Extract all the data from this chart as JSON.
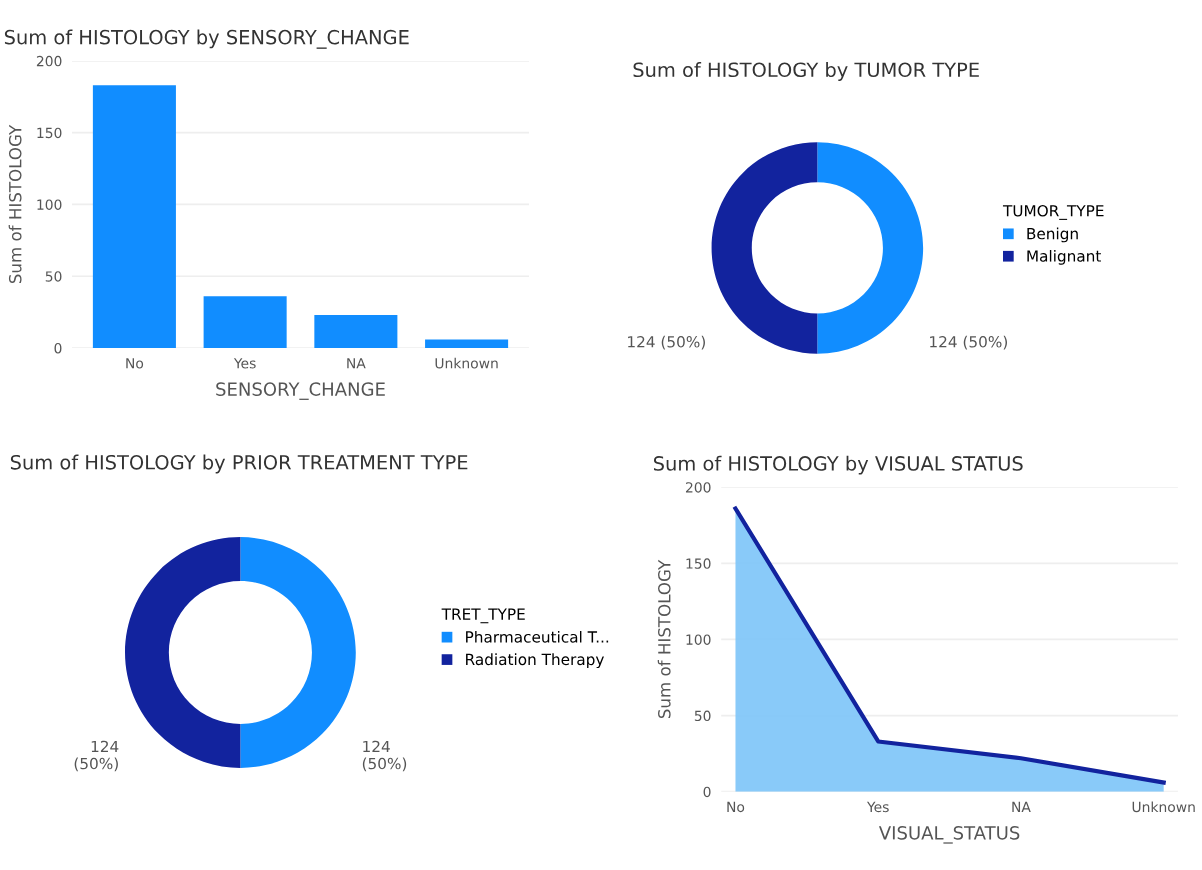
{
  "chart_data": [
    {
      "type": "bar",
      "title": "Sum of HISTOLOGY by SENSORY_CHANGE",
      "xlabel": "SENSORY_CHANGE",
      "ylabel": "Sum of HISTOLOGY",
      "categories": [
        "No",
        "Yes",
        "NA",
        "Unknown"
      ],
      "values": [
        183,
        36,
        23,
        6
      ],
      "color": "#118dff",
      "ylim": [
        0,
        200
      ],
      "yticks": [
        0,
        50,
        100,
        150,
        200
      ],
      "grid": "y"
    },
    {
      "type": "donut",
      "title": "Sum of HISTOLOGY by TUMOR TYPE",
      "legend_title": "TUMOR_TYPE",
      "categories": [
        "Benign",
        "Malignant"
      ],
      "values": [
        124,
        124
      ],
      "colors": [
        "#118dff",
        "#12239e"
      ],
      "value_labels": [
        "124 (50%)",
        "124 (50%)"
      ],
      "legend": "right"
    },
    {
      "type": "donut",
      "title": "Sum of HISTOLOGY by PRIOR TREATMENT TYPE",
      "legend_title": "TRET_TYPE",
      "categories": [
        "Pharmaceutical T...",
        "Radiation Therapy"
      ],
      "values": [
        124,
        124
      ],
      "colors": [
        "#118dff",
        "#12239e"
      ],
      "value_labels": [
        "124\n(50%)",
        "124\n(50%)"
      ],
      "legend": "right"
    },
    {
      "type": "area",
      "title": "Sum of HISTOLOGY by VISUAL STATUS",
      "xlabel": "VISUAL_STATUS",
      "ylabel": "Sum of HISTOLOGY",
      "categories": [
        "No",
        "Yes",
        "NA",
        "Unknown"
      ],
      "values": [
        186,
        33,
        22,
        6
      ],
      "color": "#12239e",
      "ylim": [
        0,
        200
      ],
      "yticks": [
        0,
        50,
        100,
        150,
        200
      ],
      "grid": "y"
    }
  ]
}
